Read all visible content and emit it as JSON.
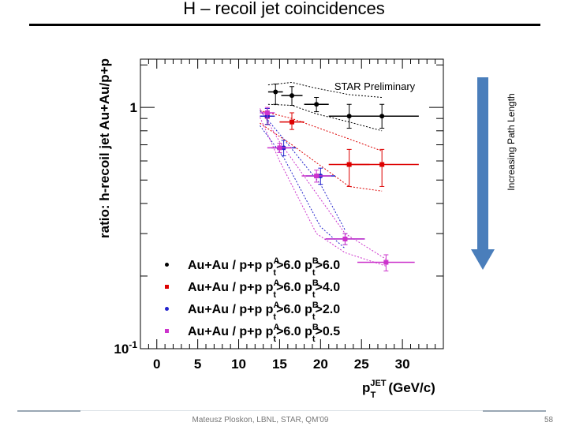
{
  "slide": {
    "title": "H – recoil jet coincidences",
    "footer_author": "Mateusz Ploskon, LBNL, STAR, QM'09",
    "page_number": "58"
  },
  "arrow_label": "Increasing Path Length",
  "chart_data": {
    "type": "scatter",
    "title": "",
    "annotation": "STAR Preliminary",
    "ylabel": "ratio: h-recoil jet Au+Au/p+p",
    "xlabel_main": "p",
    "xlabel_sub": "T",
    "xlabel_sup": "JET",
    "xlabel_unit": "(GeV/c)",
    "xlim": [
      -2,
      35
    ],
    "ylim_log10": [
      -1,
      0.2
    ],
    "yscale": "log",
    "xticks": [
      0,
      5,
      10,
      15,
      20,
      25,
      30
    ],
    "xtick_labels": [
      "0",
      "5",
      "10",
      "15",
      "20",
      "25",
      "30"
    ],
    "yticks_labeled": [
      {
        "value": 1,
        "label": "1"
      },
      {
        "value": 0.1,
        "label": "10-1"
      }
    ],
    "series": [
      {
        "name": "Au+Au / p+p ptA>6.0 ptB>6.0",
        "legend_text": "Au+Au / p+p p",
        "cutA": "6.0",
        "cutB": "6.0",
        "color": "#000000",
        "marker": "circle",
        "points": [
          {
            "x": 14.5,
            "xerr": 0.9,
            "y": 1.16,
            "ylo": 1.03,
            "yhi": 1.25
          },
          {
            "x": 16.5,
            "xerr": 1.3,
            "y": 1.12,
            "ylo": 1.02,
            "yhi": 1.22
          },
          {
            "x": 19.5,
            "xerr": 1.5,
            "y": 1.03,
            "ylo": 0.96,
            "yhi": 1.1
          },
          {
            "x": 23.5,
            "xerr": 2.5,
            "y": 0.92,
            "ylo": 0.82,
            "yhi": 1.03
          },
          {
            "x": 27.5,
            "xerr": 4.5,
            "y": 0.92,
            "ylo": 0.82,
            "yhi": 1.03
          }
        ],
        "band_upper": [
          1.24,
          1.27,
          1.2,
          1.13,
          1.1
        ],
        "band_lower": [
          1.03,
          1.02,
          0.94,
          0.87,
          0.8
        ]
      },
      {
        "name": "Au+Au / p+p ptA>6.0 ptB>4.0",
        "legend_text": "Au+Au / p+p p",
        "cutA": "6.0",
        "cutB": "4.0",
        "color": "#dd0000",
        "marker": "square",
        "points": [
          {
            "x": 13.5,
            "xerr": 0.9,
            "y": 0.92,
            "ylo": 0.85,
            "yhi": 0.99
          },
          {
            "x": 16.5,
            "xerr": 1.5,
            "y": 0.87,
            "ylo": 0.81,
            "yhi": 0.95
          },
          {
            "x": 23.5,
            "xerr": 2.5,
            "y": 0.58,
            "ylo": 0.47,
            "yhi": 0.67
          },
          {
            "x": 27.5,
            "xerr": 4.5,
            "y": 0.58,
            "ylo": 0.47,
            "yhi": 0.67
          }
        ],
        "band_upper": [
          0.97,
          0.9,
          0.74,
          0.66
        ],
        "band_lower": [
          0.86,
          0.7,
          0.47,
          0.45
        ]
      },
      {
        "name": "Au+Au / p+p ptA>6.0 ptB>2.0",
        "legend_text": "Au+Au / p+p p",
        "cutA": "6.0",
        "cutB": "2.0",
        "color": "#2222cc",
        "marker": "circle",
        "points": [
          {
            "x": 13.5,
            "xerr": 0.9,
            "y": 0.92,
            "ylo": 0.85,
            "yhi": 0.99
          },
          {
            "x": 15.5,
            "xerr": 1.5,
            "y": 0.68,
            "ylo": 0.63,
            "yhi": 0.73
          },
          {
            "x": 20.0,
            "xerr": 1.8,
            "y": 0.52,
            "ylo": 0.48,
            "yhi": 0.56
          },
          {
            "x": 23.0,
            "xerr": 2.4,
            "y": 0.285,
            "ylo": 0.27,
            "yhi": 0.3
          }
        ],
        "band_upper": [
          0.97,
          0.74,
          0.48,
          0.31
        ],
        "band_lower": [
          0.84,
          0.62,
          0.32,
          0.26
        ]
      },
      {
        "name": "Au+Au / p+p ptA>6.0 ptB>0.5",
        "legend_text": "Au+Au / p+p p",
        "cutA": "6.0",
        "cutB": "0.5",
        "color": "#cc33cc",
        "marker": "square",
        "points": [
          {
            "x": 13.5,
            "xerr": 0.9,
            "y": 0.95,
            "ylo": 0.9,
            "yhi": 1.0
          },
          {
            "x": 15.0,
            "xerr": 1.5,
            "y": 0.68,
            "ylo": 0.65,
            "yhi": 0.71
          },
          {
            "x": 19.5,
            "xerr": 1.8,
            "y": 0.52,
            "ylo": 0.49,
            "yhi": 0.55
          },
          {
            "x": 23.0,
            "xerr": 2.4,
            "y": 0.285,
            "ylo": 0.27,
            "yhi": 0.3
          },
          {
            "x": 28.0,
            "xerr": 3.5,
            "y": 0.228,
            "ylo": 0.21,
            "yhi": 0.245
          }
        ],
        "band_upper": [
          0.99,
          0.72,
          0.44,
          0.3,
          0.235
        ],
        "band_lower": [
          0.91,
          0.6,
          0.3,
          0.25,
          0.22
        ]
      }
    ],
    "legend_position": "bottom-left"
  }
}
